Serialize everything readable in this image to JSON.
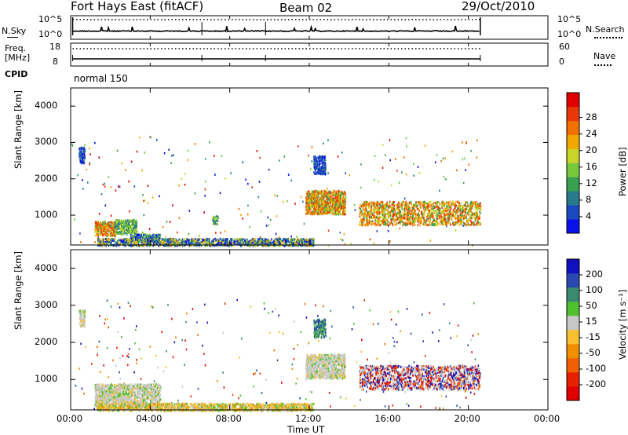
{
  "header": {
    "station": "Fort Hays East (fitACF)",
    "beam": "Beam 02",
    "date": "29/Oct/2010"
  },
  "top_panels": {
    "nsky_label": "N.Sky",
    "nsky_ticks": [
      "10^5",
      "10^0"
    ],
    "nsearch_label": "N.Search",
    "nsearch_ticks": [
      "10^5",
      "10^0"
    ],
    "freq_label": "Freq.",
    "freq_unit": "[MHz]",
    "freq_ticks": [
      "18",
      "8"
    ],
    "nave_label": "Nave",
    "nave_ticks": [
      "60",
      "0"
    ],
    "cpid_label": "CPID",
    "cpid_value": "normal 150"
  },
  "chart_data": [
    {
      "type": "heatmap",
      "name": "power",
      "ylabel": "Slant Range [km]",
      "xlabel": "Time UT",
      "xlim_hours": [
        0,
        24
      ],
      "ylim_km": [
        180,
        4500
      ],
      "yticks": [
        "1000",
        "2000",
        "3000",
        "4000"
      ],
      "colorbar": {
        "label": "Power [dB]",
        "ticks": [
          "4",
          "8",
          "12",
          "16",
          "20",
          "24",
          "28"
        ],
        "colors": [
          "#0a10e8",
          "#1a48c0",
          "#2a7a8c",
          "#3aa050",
          "#78c83c",
          "#c8d428",
          "#f0a800",
          "#f07000",
          "#e83808",
          "#e00000"
        ]
      },
      "echo_regions": [
        {
          "t0": 0.4,
          "t1": 0.7,
          "r0": 2450,
          "r1": 2900,
          "level": "low"
        },
        {
          "t0": 1.2,
          "t1": 2.2,
          "r0": 450,
          "r1": 850,
          "level": "mid-high"
        },
        {
          "t0": 2.2,
          "t1": 3.3,
          "r0": 500,
          "r1": 900,
          "level": "mid"
        },
        {
          "t0": 3.0,
          "t1": 4.5,
          "r0": 300,
          "r1": 500,
          "level": "low-mid"
        },
        {
          "t0": 1.3,
          "t1": 12.2,
          "r0": 180,
          "r1": 380,
          "level": "mixed"
        },
        {
          "t0": 7.1,
          "t1": 7.4,
          "r0": 780,
          "r1": 1000,
          "level": "mid"
        },
        {
          "t0": 12.2,
          "t1": 12.8,
          "r0": 2150,
          "r1": 2650,
          "level": "low"
        },
        {
          "t0": 11.8,
          "t1": 13.8,
          "r0": 1050,
          "r1": 1700,
          "level": "mid-high"
        },
        {
          "t0": 14.5,
          "t1": 20.6,
          "r0": 750,
          "r1": 1400,
          "level": "mid-high"
        }
      ]
    },
    {
      "type": "heatmap",
      "name": "velocity",
      "ylabel": "Slant Range [km]",
      "xlabel": "Time UT",
      "xlim_hours": [
        0,
        24
      ],
      "ylim_km": [
        180,
        4500
      ],
      "xticks": [
        "00:00",
        "04:00",
        "08:00",
        "12:00",
        "16:00",
        "20:00",
        "00:00"
      ],
      "yticks": [
        "1000",
        "2000",
        "3000",
        "4000"
      ],
      "colorbar": {
        "label": "Velocity [m s⁻¹]",
        "ticks": [
          "200",
          "100",
          "50",
          "15",
          "-15",
          "-50",
          "-100",
          "-200"
        ],
        "colors": [
          "#1010c0",
          "#2a48b0",
          "#3a8a70",
          "#50c030",
          "#c8c8c8",
          "#f8c030",
          "#f09000",
          "#f06000",
          "#e82000",
          "#e00000"
        ]
      },
      "echo_regions": [
        {
          "t0": 0.4,
          "t1": 0.7,
          "r0": 2450,
          "r1": 2900,
          "level": "ground"
        },
        {
          "t0": 1.2,
          "t1": 4.5,
          "r0": 300,
          "r1": 900,
          "level": "ground"
        },
        {
          "t0": 1.3,
          "t1": 12.2,
          "r0": 180,
          "r1": 380,
          "level": "negative-small"
        },
        {
          "t0": 12.2,
          "t1": 12.8,
          "r0": 2150,
          "r1": 2650,
          "level": "positive"
        },
        {
          "t0": 11.8,
          "t1": 13.8,
          "r0": 1050,
          "r1": 1700,
          "level": "ground"
        },
        {
          "t0": 14.5,
          "t1": 20.6,
          "r0": 750,
          "r1": 1400,
          "level": "ground-mixed"
        }
      ]
    }
  ]
}
